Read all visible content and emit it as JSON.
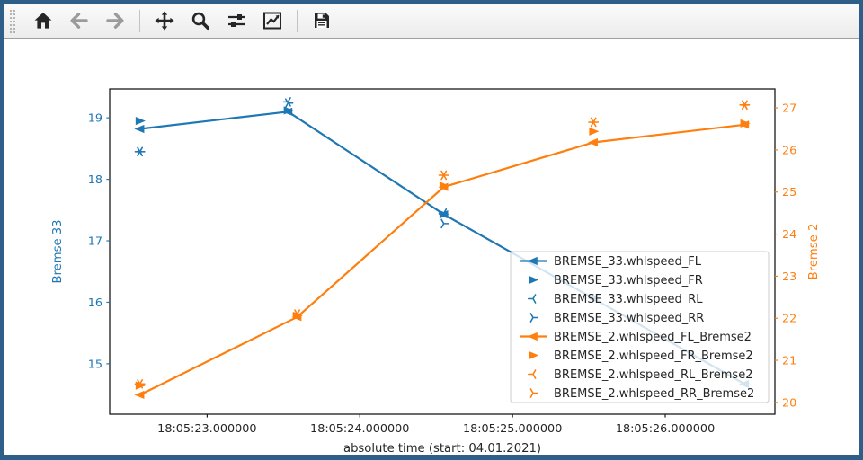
{
  "window": {
    "border_color": "#2e5f88",
    "app": "matplotlib figure window"
  },
  "toolbar": {
    "items": [
      {
        "type": "handle",
        "name": "toolbar-drag-handle"
      },
      {
        "type": "button",
        "name": "home",
        "icon": "home-icon",
        "enabled": true
      },
      {
        "type": "button",
        "name": "back",
        "icon": "back-arrow-icon",
        "enabled": false
      },
      {
        "type": "button",
        "name": "forward",
        "icon": "forward-arrow-icon",
        "enabled": false
      },
      {
        "type": "separator"
      },
      {
        "type": "button",
        "name": "pan",
        "icon": "pan-move-icon",
        "enabled": true
      },
      {
        "type": "button",
        "name": "zoom",
        "icon": "zoom-magnifier-icon",
        "enabled": true
      },
      {
        "type": "button",
        "name": "configure-subplots",
        "icon": "sliders-icon",
        "enabled": true
      },
      {
        "type": "button",
        "name": "edit-axes",
        "icon": "line-chart-icon",
        "enabled": true
      },
      {
        "type": "separator"
      },
      {
        "type": "button",
        "name": "save",
        "icon": "save-floppy-icon",
        "enabled": true
      }
    ]
  },
  "chart_data": {
    "type": "line",
    "title": "",
    "xlabel": "absolute time (start: 04.01.2021)",
    "ylabel_left": "Bremse 33",
    "ylabel_right": "Bremse 2",
    "x_unit": "seconds after 18:05:00",
    "xlim": [
      22.362,
      26.718
    ],
    "ylim_left": [
      14.18,
      19.47
    ],
    "ylim_right": [
      19.72,
      27.45
    ],
    "grid": false,
    "legend_position": "lower right",
    "xticks": [
      {
        "value": 23,
        "label": "18:05:23.000000"
      },
      {
        "value": 24,
        "label": "18:05:24.000000"
      },
      {
        "value": 25,
        "label": "18:05:25.000000"
      },
      {
        "value": 26,
        "label": "18:05:26.000000"
      }
    ],
    "yticks_left": [
      15,
      16,
      17,
      18,
      19
    ],
    "yticks_right": [
      20,
      21,
      22,
      23,
      24,
      25,
      26,
      27
    ],
    "colors": {
      "left_axis": "#1f77b4",
      "right_axis": "#ff7f0e",
      "spine": "#1a1a1a",
      "text": "#262626",
      "legend_border": "#cccccc"
    },
    "series": [
      {
        "name": "BREMSE_33.whlspeed_FL",
        "axis": "left",
        "color": "#1f77b4",
        "marker": "triangle-left",
        "line": true,
        "points": [
          [
            22.56,
            18.82
          ],
          [
            23.53,
            19.1
          ],
          [
            24.55,
            17.43
          ],
          [
            25.53,
            16.06
          ],
          [
            26.52,
            14.67
          ]
        ]
      },
      {
        "name": "BREMSE_33.whlspeed_FR",
        "axis": "left",
        "color": "#1f77b4",
        "marker": "triangle-right",
        "line": false,
        "points": [
          [
            22.56,
            18.95
          ],
          [
            23.53,
            19.12
          ],
          [
            24.55,
            17.43
          ]
        ]
      },
      {
        "name": "BREMSE_33.whlspeed_RL",
        "axis": "left",
        "color": "#1f77b4",
        "marker": "tri-left",
        "line": false,
        "points": [
          [
            22.56,
            18.45
          ],
          [
            23.53,
            19.26
          ],
          [
            24.55,
            17.45
          ]
        ]
      },
      {
        "name": "BREMSE_33.whlspeed_RR",
        "axis": "left",
        "color": "#1f77b4",
        "marker": "tri-right",
        "line": false,
        "points": [
          [
            22.56,
            18.45
          ],
          [
            23.53,
            19.24
          ],
          [
            24.55,
            17.28
          ]
        ]
      },
      {
        "name": "BREMSE_2.whlspeed_FL_Bremse2",
        "axis": "right",
        "color": "#ff7f0e",
        "marker": "triangle-left",
        "line": true,
        "points": [
          [
            22.56,
            20.18
          ],
          [
            23.59,
            22.03
          ],
          [
            24.55,
            25.12
          ],
          [
            25.53,
            26.18
          ],
          [
            26.52,
            26.6
          ]
        ]
      },
      {
        "name": "BREMSE_2.whlspeed_FR_Bremse2",
        "axis": "right",
        "color": "#ff7f0e",
        "marker": "triangle-right",
        "line": false,
        "points": [
          [
            22.56,
            20.4
          ],
          [
            23.59,
            22.06
          ],
          [
            24.55,
            25.15
          ],
          [
            25.53,
            26.44
          ],
          [
            26.52,
            26.63
          ]
        ]
      },
      {
        "name": "BREMSE_2.whlspeed_RL_Bremse2",
        "axis": "right",
        "color": "#ff7f0e",
        "marker": "tri-left",
        "line": false,
        "points": [
          [
            22.56,
            20.44
          ],
          [
            23.59,
            22.1
          ],
          [
            24.55,
            25.4
          ],
          [
            25.53,
            26.66
          ],
          [
            26.52,
            27.07
          ]
        ]
      },
      {
        "name": "BREMSE_2.whlspeed_RR_Bremse2",
        "axis": "right",
        "color": "#ff7f0e",
        "marker": "tri-right",
        "line": false,
        "points": [
          [
            22.56,
            20.44
          ],
          [
            23.59,
            22.1
          ],
          [
            24.55,
            25.4
          ],
          [
            25.53,
            26.66
          ],
          [
            26.52,
            27.07
          ]
        ]
      }
    ]
  }
}
